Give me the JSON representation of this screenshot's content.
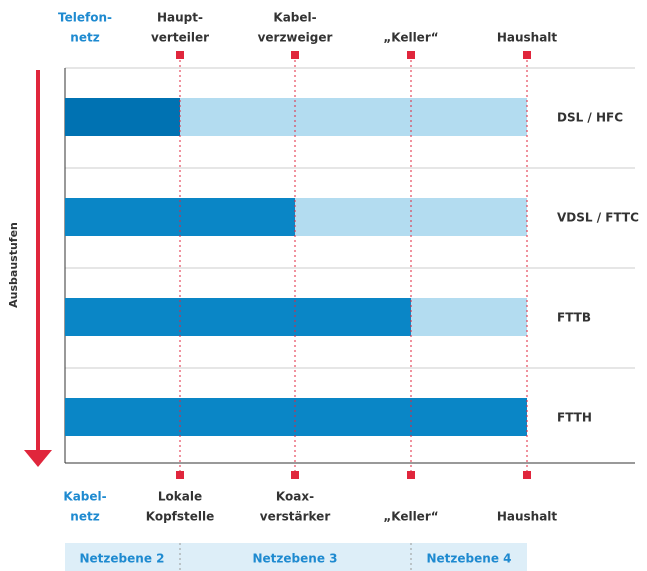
{
  "top_left": [
    "Telefon-",
    "netz"
  ],
  "top_nodes": [
    [
      "Haupt-",
      "verteiler"
    ],
    [
      "Kabel-",
      "verzweiger"
    ],
    [
      "„Keller“"
    ],
    [
      "Haushalt"
    ]
  ],
  "rows": [
    "DSL / HFC",
    "VDSL / FTTC",
    "FTTB",
    "FTTH"
  ],
  "axis_label": "Ausbaustufen",
  "bottom_left": [
    "Kabel-",
    "netz"
  ],
  "bottom_nodes": [
    [
      "Lokale",
      "Kopfstelle"
    ],
    [
      "Koax-",
      "verstärker"
    ],
    [
      "„Keller“"
    ],
    [
      "Haushalt"
    ]
  ],
  "levels": [
    "Netzebene 2",
    "Netzebene 3",
    "Netzebene 4"
  ]
}
